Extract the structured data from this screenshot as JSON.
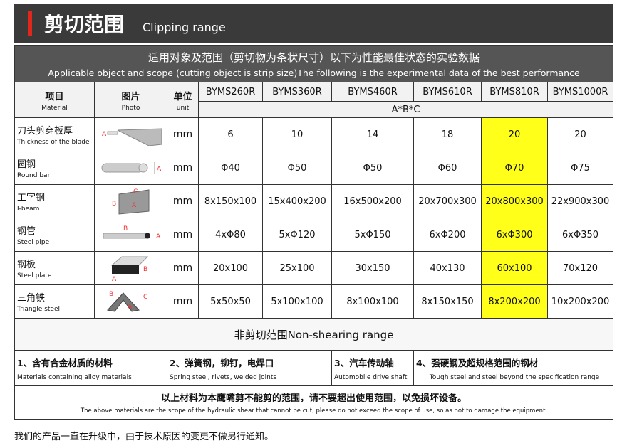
{
  "header": {
    "title_cn": "剪切范围",
    "title_en": "Clipping range"
  },
  "table": {
    "intro_cn": "适用对象及范围（剪切物为条状尺寸）以下为性能最佳状态的实验数据",
    "intro_en": "Applicable object and scope (cutting object is strip size)The following is the experimental data of the best performance",
    "col_material": {
      "cn": "项目",
      "en": "Material"
    },
    "col_photo": {
      "cn": "图片",
      "en": "Photo"
    },
    "col_unit": {
      "cn": "单位",
      "en": "unit"
    },
    "models": [
      "BYMS260R",
      "BYMS360R",
      "BYMS460R",
      "BYMS610R",
      "BYMS810R",
      "BYMS1000R"
    ],
    "dim_label": "A*B*C",
    "highlight_color": "#ffff1a",
    "rows": [
      {
        "cn": "刀头剪穿板厚",
        "en": "Thickness of the blade",
        "unit": "mm",
        "values": [
          "6",
          "10",
          "14",
          "18",
          "20",
          "20"
        ]
      },
      {
        "cn": "圆钢",
        "en": "Round bar",
        "unit": "mm",
        "values": [
          "Φ40",
          "Φ50",
          "Φ50",
          "Φ60",
          "Φ70",
          "Φ75"
        ]
      },
      {
        "cn": "工字钢",
        "en": "I-beam",
        "unit": "mm",
        "values": [
          "8x150x100",
          "15x400x200",
          "16x500x200",
          "20x700x300",
          "20x800x300",
          "22x900x300"
        ]
      },
      {
        "cn": "钢管",
        "en": "Steel pipe",
        "unit": "mm",
        "values": [
          "4xΦ80",
          "5xΦ120",
          "5xΦ150",
          "6xΦ200",
          "6xΦ300",
          "6xΦ350"
        ]
      },
      {
        "cn": "钢板",
        "en": "Steel plate",
        "unit": "mm",
        "values": [
          "20x100",
          "25x100",
          "30x150",
          "40x130",
          "60x100",
          "70x120"
        ]
      },
      {
        "cn": "三角铁",
        "en": "Triangle steel",
        "unit": "mm",
        "values": [
          "5x50x50",
          "5x100x100",
          "8x100x100",
          "8x150x150",
          "8x200x200",
          "10x200x200"
        ]
      }
    ],
    "non_shearing": "非剪切范围Non-shearing range",
    "non_items": [
      {
        "cn": "1、含有合金材质的材料",
        "en": "Materials containing alloy materials"
      },
      {
        "cn": "2、弹簧钢，铆钉，电焊口",
        "en": "Spring steel, rivets, welded joints"
      },
      {
        "cn": "3、汽车传动轴",
        "en": "Automobile drive shaft"
      },
      {
        "cn": "4、强硬钢及超规格范围的钢材",
        "en": "Tough steel and steel beyond the specification range"
      }
    ],
    "notice_cn": "以上材料为本鹰嘴剪不能剪的范围，请不要超出使用范围，以免损坏设备。",
    "notice_en": "The above materials are the scope of the hydraulic shear that cannot be cut, please do not exceed the scope of use, so as not to damage the equipment."
  },
  "footer": "我们的产品一直在升级中，由于技术原因的变更不做另行通知。"
}
